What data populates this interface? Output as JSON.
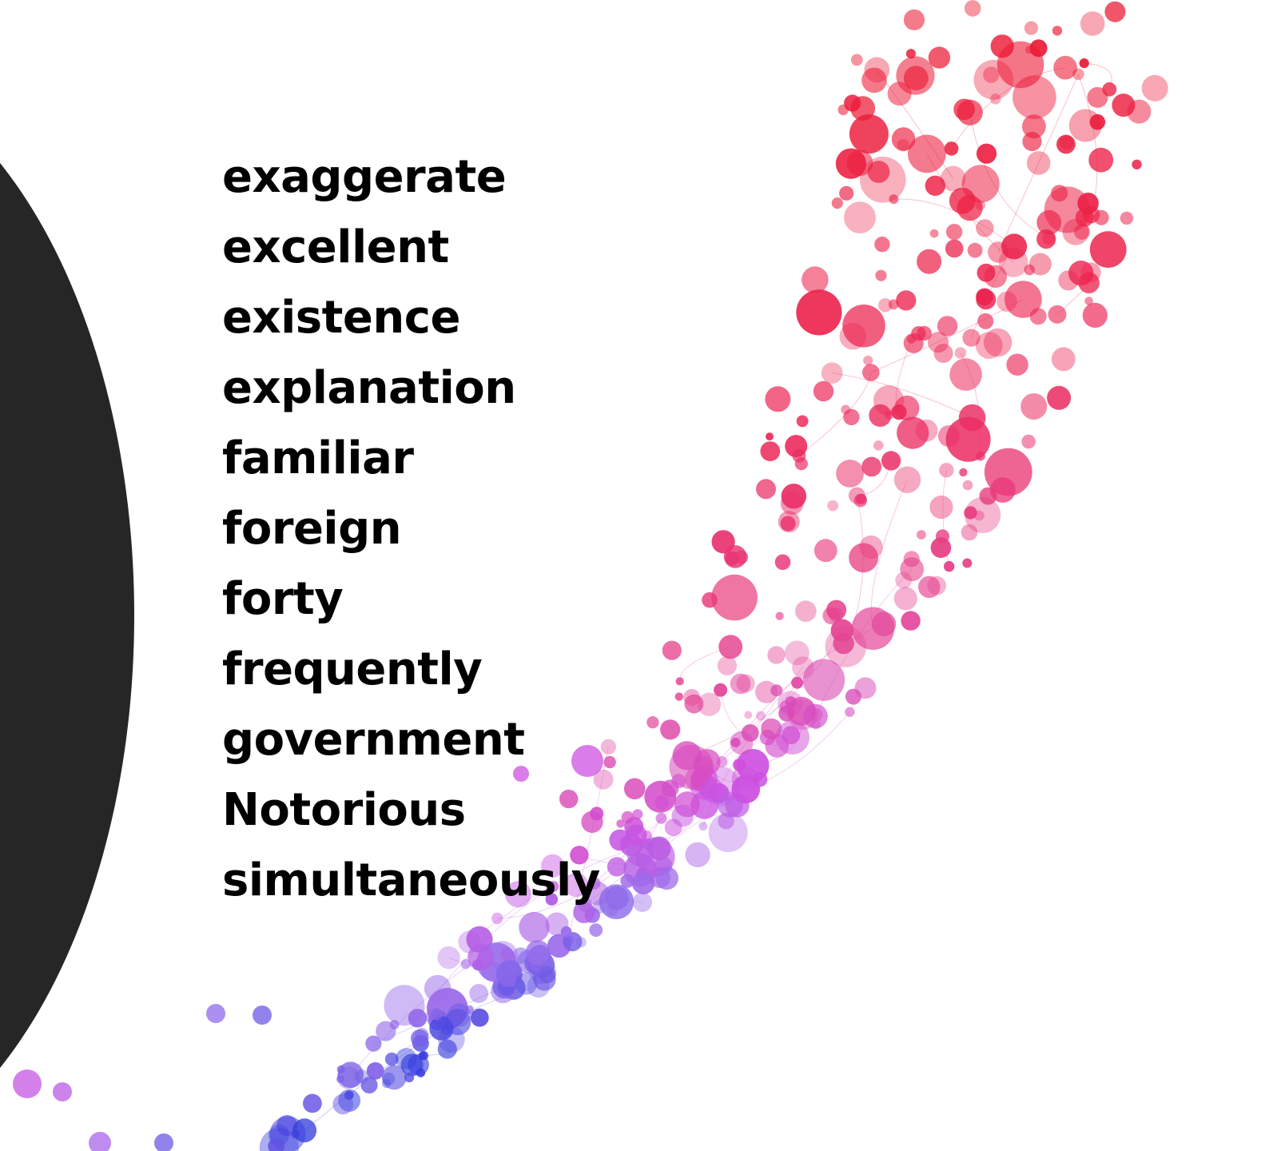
{
  "slide": {
    "words": [
      "exaggerate",
      "excellent",
      "existence",
      "explanation",
      "familiar",
      "foreign",
      "forty",
      "frequently",
      "government",
      "Notorious",
      "simultaneously"
    ]
  },
  "colors": {
    "background": "#ffffff",
    "left_shape": "#262626",
    "text": "#000000",
    "bubble_red": "#ee2244",
    "bubble_pink": "#e8407a",
    "bubble_magenta": "#d040d8",
    "bubble_violet": "#b080f0",
    "bubble_blue": "#3040e0"
  },
  "decoration": {
    "left_shape": "dark-semicircle",
    "right_art": "colored-bubble-network"
  }
}
